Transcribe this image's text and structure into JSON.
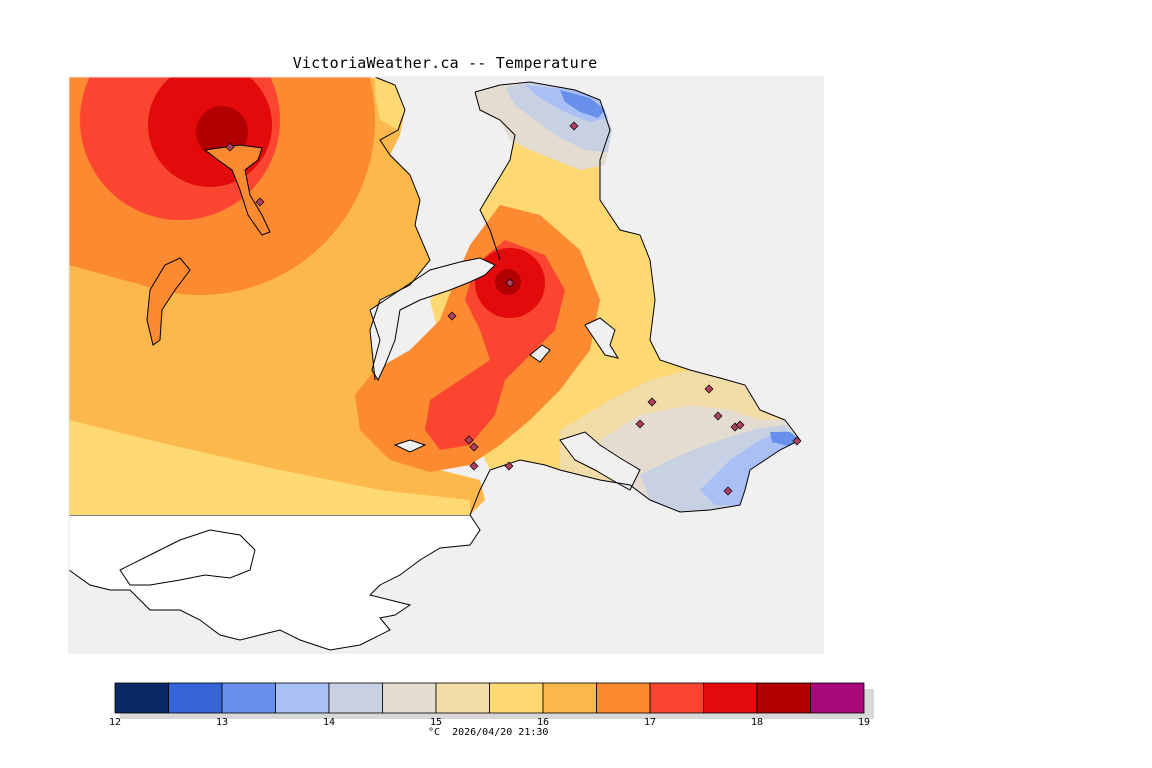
{
  "title": "VictoriaWeather.ca -- Temperature",
  "footer": "°C  2026/04/20 21:30",
  "legend": {
    "ticks": [
      "12",
      "13",
      "14",
      "15",
      "16",
      "17",
      "18",
      "19"
    ],
    "colors": [
      "#0a2866",
      "#3464d8",
      "#6890ea",
      "#a8c0f6",
      "#c8d0e4",
      "#e4dcd0",
      "#f2dca8",
      "#fed872",
      "#fdb84c",
      "#fb8a30",
      "#fa4630",
      "#e20a0a",
      "#b20000",
      "#a8087a"
    ]
  },
  "palette": {
    "ocean": "#f0f0f0",
    "land_no_data": "#ffffff",
    "coast": "#000000",
    "station_marker": "#b04060"
  },
  "stations_count": 17
}
